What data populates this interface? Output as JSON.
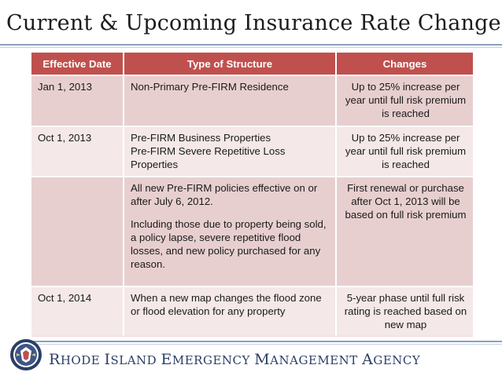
{
  "title": "Current & Upcoming Insurance Rate Changes",
  "table": {
    "headers": [
      "Effective Date",
      "Type of Structure",
      "Changes"
    ],
    "rows": [
      {
        "date": "Jan 1, 2013",
        "structure": [
          "Non-Primary Pre-FIRM Residence"
        ],
        "changes": "Up to 25% increase per year until full risk premium is reached"
      },
      {
        "date": "Oct 1, 2013",
        "structure": [
          "Pre-FIRM Business Properties",
          "Pre-FIRM Severe Repetitive Loss Properties"
        ],
        "changes": "Up to 25% increase per year until full risk premium is reached"
      },
      {
        "date": "",
        "structure": [
          "All new Pre-FIRM policies effective on or after July 6, 2012.",
          "Including those due to property being sold, a policy lapse, severe repetitive flood losses, and new policy purchased for any reason."
        ],
        "changes": "First renewal or purchase after Oct 1, 2013 will be based on full risk premium"
      },
      {
        "date": "Oct 1, 2014",
        "structure": [
          "When a new map changes the flood zone or flood elevation for any property"
        ],
        "changes": "5-year phase until full risk rating is reached based on new map"
      }
    ]
  },
  "footer": {
    "agency_words": [
      {
        "cap": "R",
        "rest": "HODE"
      },
      {
        "cap": "I",
        "rest": "SLAND"
      },
      {
        "cap": "E",
        "rest": "MERGENCY"
      },
      {
        "cap": "M",
        "rest": "ANAGEMENT"
      },
      {
        "cap": "A",
        "rest": "GENCY"
      }
    ]
  },
  "colors": {
    "header_bg": "#c0504d",
    "row_dark": "#e8cfcf",
    "row_light": "#f4e8e8",
    "agency_text": "#2b3f66",
    "seal": "#2b3f66"
  },
  "icons": {
    "seal": "state-seal-icon"
  }
}
